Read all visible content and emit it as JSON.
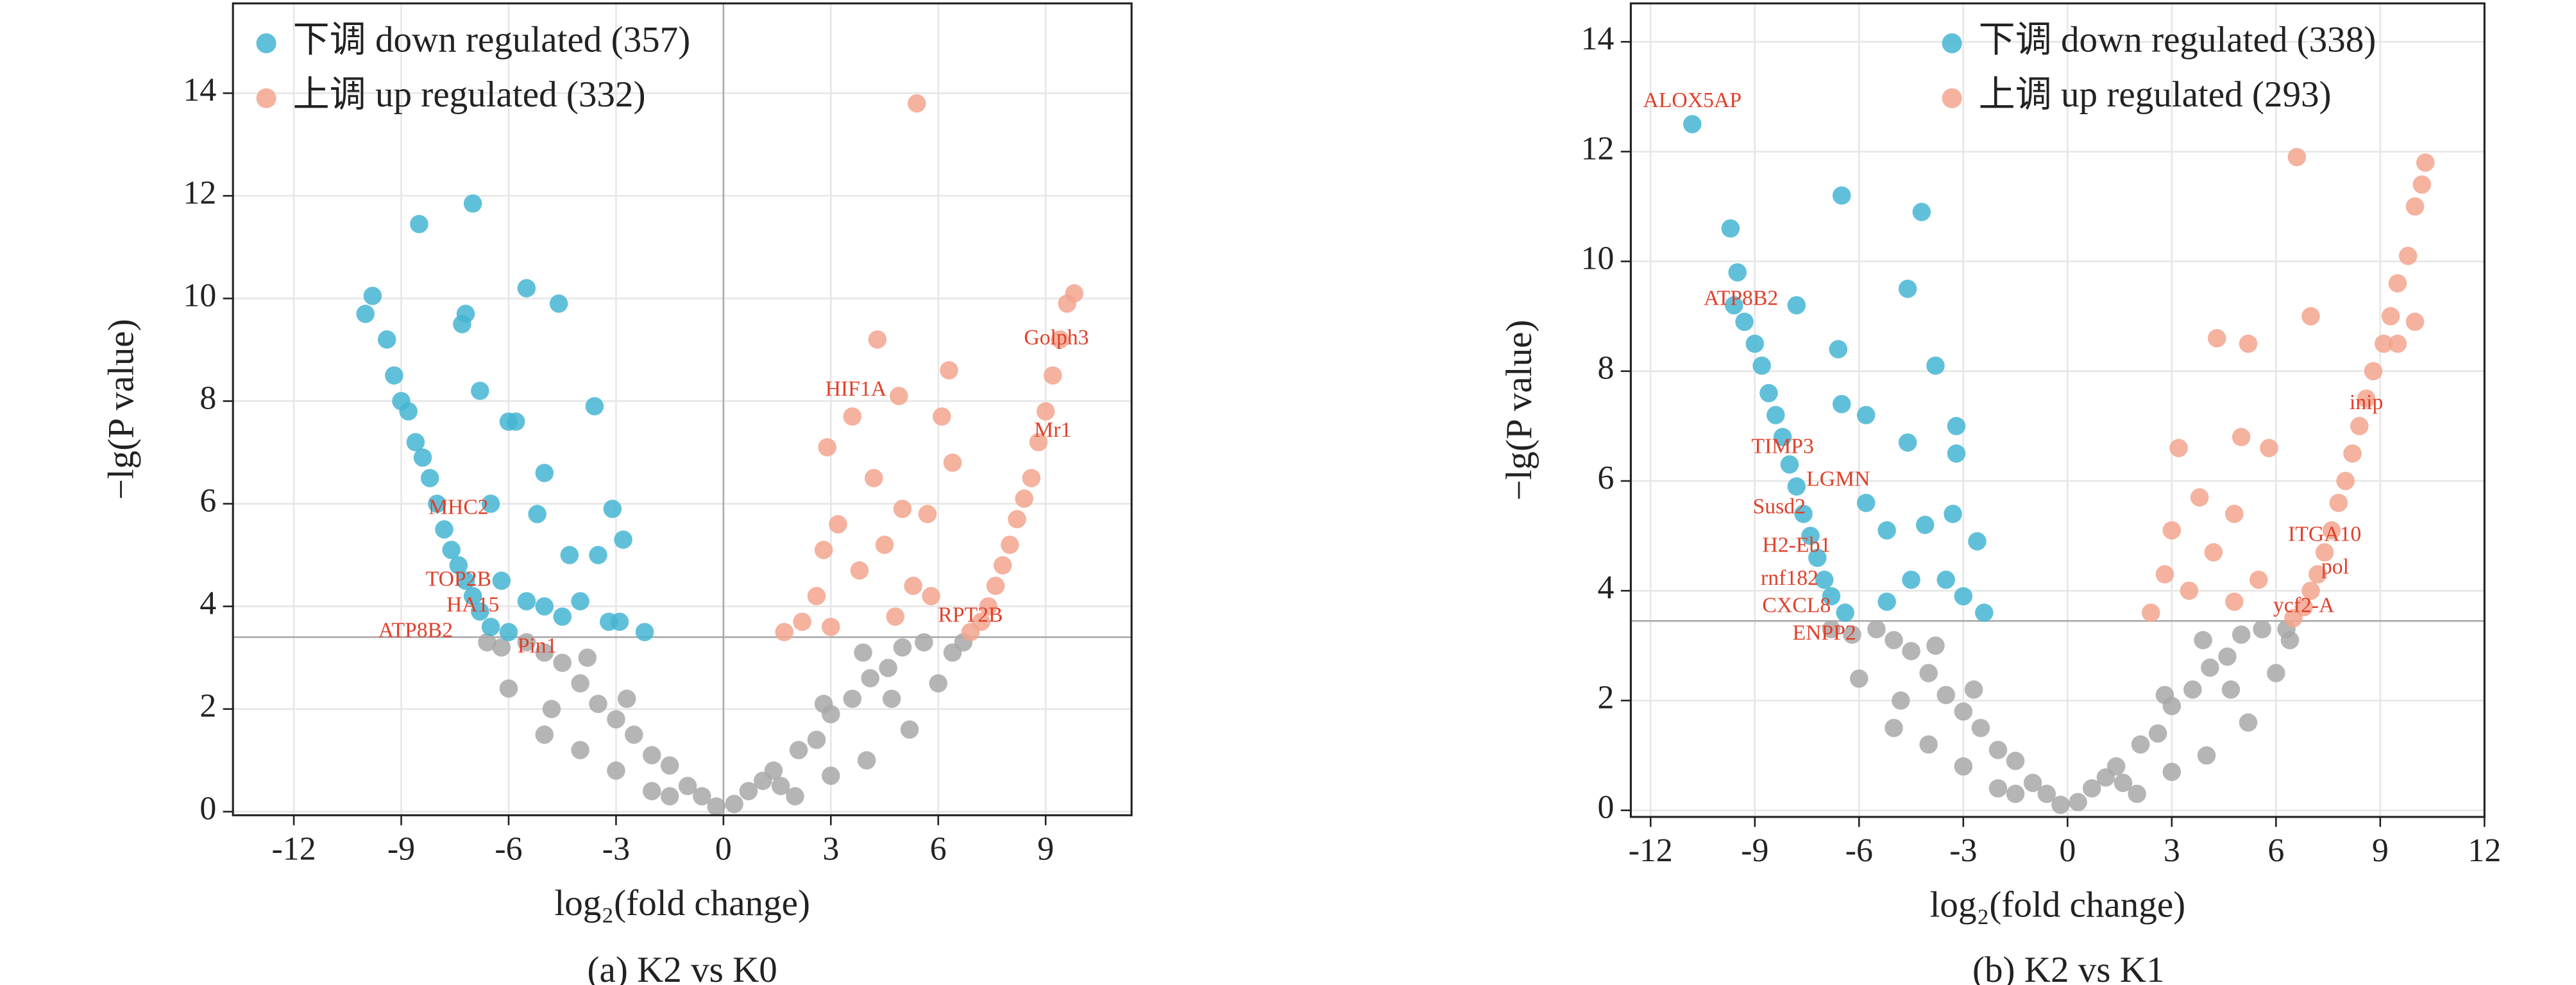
{
  "chart_data": [
    {
      "type": "scatter",
      "title": "(a) K2 vs K0",
      "xlabel": "log₂(fold change)",
      "ylabel": "−lg(P value)",
      "xlim": [
        -13.7,
        11.4
      ],
      "ylim": [
        -0.07,
        15.75
      ],
      "xticks": [
        -12,
        -9,
        -6,
        -3,
        0,
        3,
        6,
        9
      ],
      "yticks": [
        0,
        2,
        4,
        6,
        8,
        10,
        12,
        14
      ],
      "grid": true,
      "legend": "upper left",
      "hline": 3.4,
      "vline": 0,
      "series": [
        {
          "color": "#a8a8a8",
          "x": [
            -0.2,
            0.3,
            -0.6,
            0.7,
            -1,
            1.1,
            -1.5,
            1.4,
            -2,
            2.1,
            -2.5,
            2.6,
            -3,
            3,
            -3.5,
            3.6,
            -4,
            4.1,
            -4.5,
            4.6,
            -5,
            5,
            -5.5,
            5.6,
            -6,
            6,
            -4,
            4,
            -3,
            3,
            -2,
            2,
            -5,
            5.2,
            -6.2,
            6.4,
            -1.5,
            1.6,
            -2.7,
            2.8,
            -3.8,
            3.9,
            -4.8,
            4.7,
            -6.6,
            6.7
          ],
          "values": [
            0.1,
            0.15,
            0.3,
            0.4,
            0.5,
            0.6,
            0.9,
            0.8,
            1.1,
            1.2,
            1.5,
            1.4,
            1.8,
            1.9,
            2.1,
            2.2,
            2.5,
            2.6,
            2.9,
            2.8,
            3.1,
            3.2,
            3.3,
            3.3,
            2.4,
            2.5,
            1.2,
            1,
            0.8,
            0.7,
            0.4,
            0.3,
            1.5,
            1.6,
            3.2,
            3.1,
            0.3,
            0.5,
            2.2,
            2.1,
            3,
            3.1,
            2,
            2.2,
            3.3,
            3.3
          ]
        },
        {
          "name": "下调 down regulated (357)",
          "color": "#45b5d2",
          "x": [
            -10,
            -9.8,
            -9.4,
            -9.2,
            -9,
            -8.8,
            -8.6,
            -8.4,
            -8.2,
            -8,
            -7.8,
            -7.6,
            -7.4,
            -7.2,
            -7,
            -6.8,
            -6.5,
            -8.5,
            -7,
            -7.2,
            -5.5,
            -4.6,
            -7.3,
            -6.8,
            -6,
            -5.8,
            -3.6,
            -5,
            -6.5,
            -5.2,
            -3.1,
            -4.3,
            -3.5,
            -2.8,
            -5.5,
            -5,
            -4.5,
            -4,
            -3.2,
            -2.9,
            -2.2,
            -6,
            -6.2
          ],
          "values": [
            9.7,
            10.05,
            9.2,
            8.5,
            8,
            7.8,
            7.2,
            6.9,
            6.5,
            6,
            5.5,
            5.1,
            4.8,
            4.5,
            4.2,
            3.9,
            3.6,
            11.45,
            11.85,
            9.7,
            10.2,
            9.9,
            9.5,
            8.2,
            7.6,
            7.6,
            7.9,
            6.6,
            6,
            5.8,
            5.9,
            5,
            5,
            5.3,
            4.1,
            4,
            3.8,
            4.1,
            3.7,
            3.7,
            3.5,
            3.5,
            4.5
          ]
        },
        {
          "name": "上调 up regulated (332)",
          "color": "#f2a58e",
          "x": [
            5.4,
            9.8,
            9.6,
            9.4,
            9.2,
            9,
            8.8,
            8.6,
            8.4,
            8.2,
            8,
            7.8,
            7.6,
            7.4,
            7.2,
            6.9,
            4.3,
            4.9,
            6.3,
            6.1,
            3.6,
            2.9,
            6.4,
            4.2,
            5,
            5.7,
            3.2,
            2.8,
            4.5,
            3.8,
            2.6,
            5.3,
            2.2,
            3,
            4.8,
            1.7,
            5.8
          ],
          "values": [
            13.8,
            10.1,
            9.9,
            9.2,
            8.5,
            7.8,
            7.2,
            6.5,
            6.1,
            5.7,
            5.2,
            4.8,
            4.4,
            4,
            3.7,
            3.5,
            9.2,
            8.1,
            8.6,
            7.7,
            7.7,
            7.1,
            6.8,
            6.5,
            5.9,
            5.8,
            5.6,
            5.1,
            5.2,
            4.7,
            4.2,
            4.4,
            3.7,
            3.6,
            3.8,
            3.5,
            4.2
          ]
        }
      ],
      "annotations": [
        {
          "text": "HIF1A",
          "x": 3.7,
          "y": 8.2
        },
        {
          "text": "Golph3",
          "x": 9.3,
          "y": 9.2
        },
        {
          "text": "Mr1",
          "x": 9.2,
          "y": 7.4
        },
        {
          "text": "MHC2",
          "x": -7.4,
          "y": 5.9
        },
        {
          "text": "TOP2B",
          "x": -7.4,
          "y": 4.5
        },
        {
          "text": "HA15",
          "x": -7.0,
          "y": 4.0
        },
        {
          "text": "ATP8B2",
          "x": -8.6,
          "y": 3.5
        },
        {
          "text": "Pin1",
          "x": -5.2,
          "y": 3.2
        },
        {
          "text": "RPT2B",
          "x": 6.9,
          "y": 3.8
        }
      ]
    },
    {
      "type": "scatter",
      "title": "(b) K2 vs K1",
      "xlabel": "log₂(fold change)",
      "ylabel": "−lg(P value)",
      "xlim": [
        -12.57,
        12
      ],
      "ylim": [
        -0.12,
        14.7
      ],
      "xticks": [
        -12,
        -9,
        -6,
        -3,
        0,
        3,
        6,
        9,
        12
      ],
      "yticks": [
        0,
        2,
        4,
        6,
        8,
        10,
        12,
        14
      ],
      "grid": true,
      "legend": "upper right",
      "hline": 3.45,
      "series": [
        {
          "color": "#a8a8a8",
          "x": [
            -0.2,
            0.3,
            -0.6,
            0.7,
            -1,
            1.1,
            -1.5,
            1.4,
            -2,
            2.1,
            -2.5,
            2.6,
            -3,
            3,
            -3.5,
            3.6,
            -4,
            4.1,
            -4.5,
            4.6,
            -5,
            5,
            -5.5,
            5.6,
            -6,
            6,
            -4,
            4,
            -3,
            3,
            -2,
            2,
            -5,
            5.2,
            -6.2,
            6.4,
            -1.5,
            1.6,
            -2.7,
            2.8,
            -3.8,
            3.9,
            -4.8,
            4.7,
            -6.8,
            6.3
          ],
          "values": [
            0.1,
            0.15,
            0.3,
            0.4,
            0.5,
            0.6,
            0.9,
            0.8,
            1.1,
            1.2,
            1.5,
            1.4,
            1.8,
            1.9,
            2.1,
            2.2,
            2.5,
            2.6,
            2.9,
            2.8,
            3.1,
            3.2,
            3.3,
            3.3,
            2.4,
            2.5,
            1.2,
            1,
            0.8,
            0.7,
            0.4,
            0.3,
            1.5,
            1.6,
            3.2,
            3.1,
            0.3,
            0.5,
            2.2,
            2.1,
            3,
            3.1,
            2,
            2.2,
            3.3,
            3.3
          ]
        },
        {
          "name": "下调 down regulated (338)",
          "color": "#45b5d2",
          "x": [
            -10.8,
            -9.7,
            -9.5,
            -9.6,
            -9.3,
            -9,
            -8.8,
            -8.6,
            -8.4,
            -8.2,
            -8,
            -7.8,
            -7.6,
            -7.4,
            -7.2,
            -7,
            -6.8,
            -6.4,
            -6.5,
            -4.2,
            -7.8,
            -6.6,
            -4.6,
            -3.8,
            -6.5,
            -5.8,
            -3.2,
            -4.6,
            -3.2,
            -5.8,
            -5.2,
            -4.1,
            -3.3,
            -2.6,
            -4.5,
            -3.5,
            -3,
            -2.4,
            -5.2
          ],
          "values": [
            12.5,
            10.6,
            9.8,
            9.2,
            8.9,
            8.5,
            8.1,
            7.6,
            7.2,
            6.8,
            6.3,
            5.9,
            5.4,
            5,
            4.6,
            4.2,
            3.9,
            3.6,
            11.2,
            10.9,
            9.2,
            8.4,
            9.5,
            8.1,
            7.4,
            7.2,
            7,
            6.7,
            6.5,
            5.6,
            5.1,
            5.2,
            5.4,
            4.9,
            4.2,
            4.2,
            3.9,
            3.6,
            3.8
          ]
        },
        {
          "name": "上调 up regulated (293)",
          "color": "#f2a58e",
          "x": [
            6.6,
            10.3,
            10.2,
            10,
            9.8,
            9.5,
            9.3,
            9.1,
            8.8,
            8.6,
            8.4,
            8.2,
            8,
            7.8,
            7.6,
            7.4,
            7.2,
            7,
            6.8,
            6.5,
            10,
            9.5,
            4.3,
            5.2,
            7,
            5.8,
            5,
            3.2,
            3.8,
            4.8,
            3,
            4.2,
            2.8,
            3.5,
            5.5,
            2.4,
            4.8
          ],
          "values": [
            11.9,
            11.8,
            11.4,
            11,
            10.1,
            9.6,
            9,
            8.5,
            8,
            7.5,
            7,
            6.5,
            6,
            5.6,
            5.1,
            4.7,
            4.3,
            4,
            3.7,
            3.5,
            8.9,
            8.5,
            8.6,
            8.5,
            9,
            6.6,
            6.8,
            6.6,
            5.7,
            5.4,
            5.1,
            4.7,
            4.3,
            4,
            4.2,
            3.6,
            3.8
          ]
        }
      ],
      "annotations": [
        {
          "text": "ALOX5AP",
          "x": -10.8,
          "y": 12.9
        },
        {
          "text": "ATP8B2",
          "x": -9.4,
          "y": 9.3
        },
        {
          "text": "TIMP3",
          "x": -8.2,
          "y": 6.6
        },
        {
          "text": "LGMN",
          "x": -6.6,
          "y": 6.0
        },
        {
          "text": "Susd2",
          "x": -8.3,
          "y": 5.5
        },
        {
          "text": "H2-Eb1",
          "x": -7.8,
          "y": 4.8
        },
        {
          "text": "rnf182",
          "x": -8.0,
          "y": 4.2
        },
        {
          "text": "CXCL8",
          "x": -7.8,
          "y": 3.7
        },
        {
          "text": "ENPP2",
          "x": -7.0,
          "y": 3.2
        },
        {
          "text": "inip",
          "x": 8.6,
          "y": 7.4
        },
        {
          "text": "ITGA10",
          "x": 7.4,
          "y": 5.0
        },
        {
          "text": "pol",
          "x": 7.7,
          "y": 4.4
        },
        {
          "text": "ycf2-A",
          "x": 6.8,
          "y": 3.7
        }
      ]
    }
  ]
}
